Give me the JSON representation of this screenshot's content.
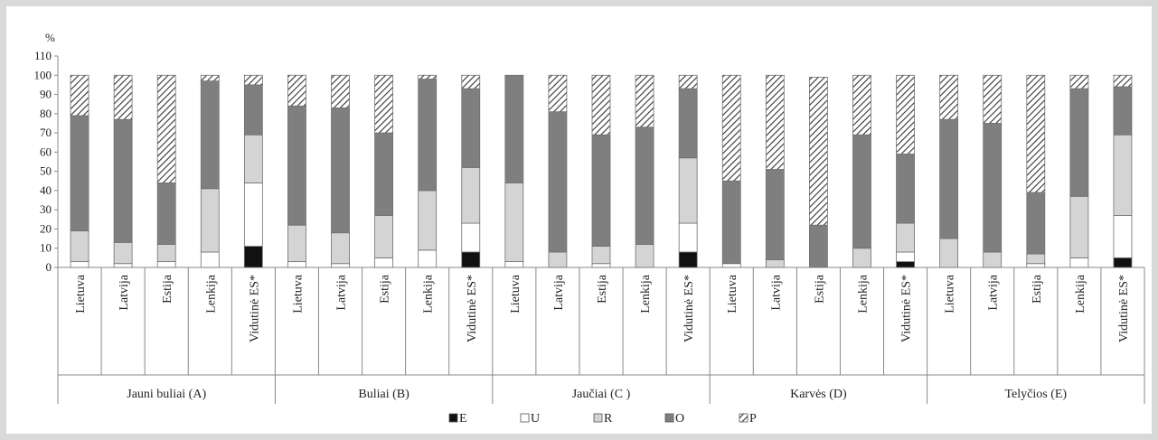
{
  "chart_data": {
    "type": "bar",
    "stacked": true,
    "percent_stacked": true,
    "ylabel": "%",
    "ylim": [
      0,
      110
    ],
    "yticks": [
      0,
      10,
      20,
      30,
      40,
      50,
      60,
      70,
      80,
      90,
      100,
      110
    ],
    "grid": false,
    "legend_position": "bottom",
    "groups": [
      {
        "name": "Jauni buliai (A)",
        "categories": [
          "Lietuva",
          "Latvija",
          "Estija",
          "Lenkija",
          "Vidutinė ES*"
        ]
      },
      {
        "name": "Buliai (B)",
        "categories": [
          "Lietuva",
          "Latvija",
          "Estija",
          "Lenkija",
          "Vidutinė ES*"
        ]
      },
      {
        "name": "Jaučiai (C )",
        "categories": [
          "Lietuva",
          "Latvija",
          "Estija",
          "Lenkija",
          "Vidutinė ES*"
        ]
      },
      {
        "name": "Karvės (D)",
        "categories": [
          "Lietuva",
          "Latvija",
          "Estija",
          "Lenkija",
          "Vidutinė ES*"
        ]
      },
      {
        "name": "Telyčios (E)",
        "categories": [
          "Lietuva",
          "Latvija",
          "Estija",
          "Lenkija",
          "Vidutinė ES*"
        ]
      }
    ],
    "series": [
      {
        "name": "E",
        "color": "#111111",
        "pattern": "solid",
        "values": [
          0,
          0,
          0,
          0,
          11,
          0,
          0,
          0,
          0,
          8,
          0,
          0,
          0,
          0,
          8,
          0,
          0,
          0,
          0,
          3,
          0,
          0,
          0,
          0,
          5
        ]
      },
      {
        "name": "U",
        "color": "#ffffff",
        "pattern": "solid",
        "values": [
          3,
          2,
          3,
          8,
          33,
          3,
          2,
          5,
          9,
          15,
          3,
          0,
          2,
          0,
          15,
          2,
          0,
          0,
          0,
          5,
          0,
          0,
          2,
          5,
          22
        ]
      },
      {
        "name": "R",
        "color": "#d4d4d4",
        "pattern": "solid",
        "values": [
          16,
          11,
          9,
          33,
          25,
          19,
          16,
          22,
          31,
          29,
          41,
          8,
          9,
          12,
          34,
          0,
          4,
          0,
          10,
          15,
          15,
          8,
          5,
          32,
          42
        ]
      },
      {
        "name": "O",
        "color": "#7f7f7f",
        "pattern": "solid",
        "values": [
          60,
          64,
          32,
          56,
          26,
          62,
          65,
          43,
          58,
          41,
          56,
          73,
          58,
          61,
          36,
          43,
          47,
          22,
          59,
          36,
          62,
          67,
          32,
          56,
          25
        ]
      },
      {
        "name": "P",
        "color": "#ffffff",
        "pattern": "hatch",
        "values": [
          21,
          23,
          56,
          3,
          5,
          16,
          17,
          30,
          2,
          7,
          0,
          19,
          31,
          27,
          7,
          55,
          49,
          77,
          31,
          41,
          23,
          25,
          61,
          7,
          6
        ]
      }
    ]
  }
}
